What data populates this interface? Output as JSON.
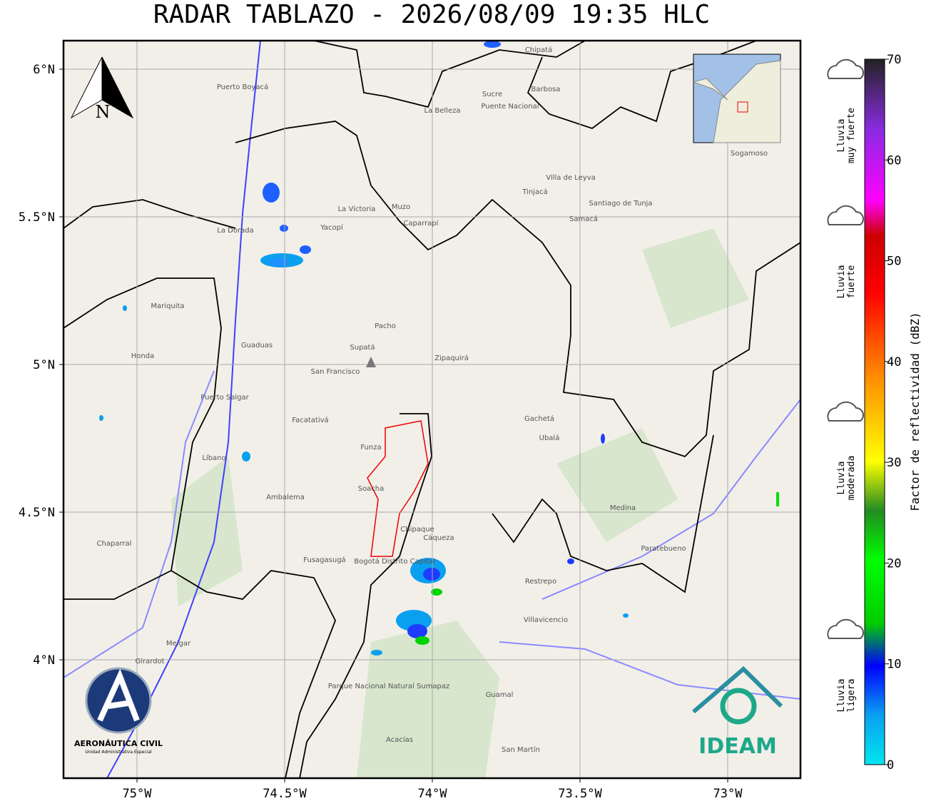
{
  "title": "RADAR TABLAZO - 2026/08/09 19:35 HLC",
  "map": {
    "lon_ticks": [
      {
        "value": -75,
        "label": "75°W"
      },
      {
        "value": -74.5,
        "label": "74.5°W"
      },
      {
        "value": -74,
        "label": "74°W"
      },
      {
        "value": -73.5,
        "label": "73.5°W"
      },
      {
        "value": -73,
        "label": "73°W"
      }
    ],
    "lat_ticks": [
      {
        "value": 6,
        "label": "6°N"
      },
      {
        "value": 5.5,
        "label": "5.5°N"
      },
      {
        "value": 5,
        "label": "5°N"
      },
      {
        "value": 4.5,
        "label": "4.5°N"
      },
      {
        "value": 4,
        "label": "4°N"
      }
    ],
    "north": "N",
    "places": [
      "Chipatá",
      "Puerto Boyacá",
      "Barbosa",
      "Sucre",
      "Puente Nacional",
      "La Belleza",
      "Villa de Leyva",
      "Tinjacá",
      "Santiago de Tunja",
      "Samacá",
      "Sogamoso",
      "Yacopí",
      "La Victoria",
      "Muzo",
      "Caparrapí",
      "Pacho",
      "Zipaquirá",
      "Supatá",
      "Guaduas",
      "San Francisco",
      "Facatativá",
      "Funza",
      "Bogotá Distrito Capital",
      "Soacha",
      "Chipaque",
      "Cáqueza",
      "Fusagasugá",
      "Villavicencio",
      "Restrepo",
      "Gachetá",
      "Ubalá",
      "Medina",
      "Paratebueno",
      "Guamal",
      "Acacías",
      "San Martín",
      "Melgar",
      "Girardot",
      "Mariquita",
      "Honda",
      "La Dorada",
      "Puerto Salgar",
      "Ambalema",
      "Líbano",
      "Chaparral",
      "Parque Nacional Natural Sumapaz"
    ],
    "inset": true
  },
  "colorbar": {
    "label": "Factor de reflectividad (dBZ)",
    "range": [
      0,
      70
    ],
    "ticks": [
      0,
      10,
      20,
      30,
      40,
      50,
      60,
      70
    ]
  },
  "legend": [
    {
      "lines": [
        "Lluvia",
        "muy fuerte"
      ]
    },
    {
      "lines": [
        "Lluvia",
        "fuerte"
      ]
    },
    {
      "lines": [
        "Lluvia",
        "moderada"
      ]
    },
    {
      "lines": [
        "Lluvia",
        "ligera"
      ]
    }
  ],
  "logos": {
    "aerocivil": "AERONÁUTICA CIVIL",
    "aerocivil_sub": "Unidad Administrativa Especial",
    "ideam": "IDEAM"
  }
}
